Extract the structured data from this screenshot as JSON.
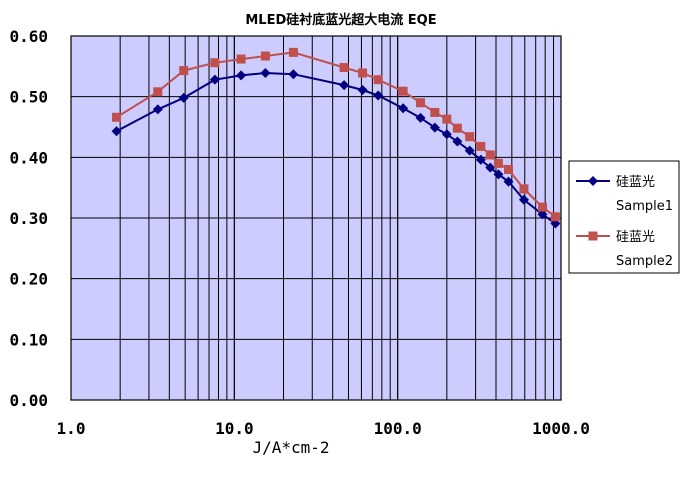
{
  "chart_data": {
    "type": "line",
    "title": "MLED硅衬底蓝光超大电流 EQE",
    "xlabel": "J/A*cm-2",
    "ylabel": "",
    "x_scale": "log",
    "xlim": [
      1,
      1000
    ],
    "ylim": [
      0,
      0.6
    ],
    "x_ticks": [
      1,
      10,
      100,
      1000
    ],
    "x_tick_labels": [
      "1.0",
      "10.0",
      "100.0",
      "1000.0"
    ],
    "y_ticks": [
      0,
      0.1,
      0.2,
      0.3,
      0.4,
      0.5,
      0.6
    ],
    "y_tick_labels": [
      "0.00",
      "0.10",
      "0.20",
      "0.30",
      "0.40",
      "0.50",
      "0.60"
    ],
    "grid": true,
    "plot_background": "#ccccff",
    "legend_position": "right",
    "series": [
      {
        "name": "硅蓝光 Sample1",
        "legend_lines": [
          "硅蓝光",
          "Sample1"
        ],
        "color": "#000080",
        "marker": "diamond",
        "x": [
          1.9,
          3.4,
          4.9,
          7.6,
          11,
          15.5,
          23,
          47,
          61,
          76,
          108,
          138,
          169,
          200,
          232,
          276,
          323,
          369,
          414,
          477,
          593,
          770,
          924
        ],
        "y": [
          0.443,
          0.479,
          0.498,
          0.528,
          0.535,
          0.539,
          0.537,
          0.519,
          0.511,
          0.502,
          0.481,
          0.465,
          0.449,
          0.438,
          0.426,
          0.411,
          0.396,
          0.383,
          0.372,
          0.36,
          0.33,
          0.306,
          0.291
        ]
      },
      {
        "name": "硅蓝光 Sample2",
        "legend_lines": [
          "硅蓝光",
          "Sample2"
        ],
        "color": "#c0504d",
        "marker": "square",
        "x": [
          1.9,
          3.4,
          4.9,
          7.6,
          11,
          15.5,
          23,
          47,
          61,
          76,
          108,
          138,
          169,
          200,
          232,
          276,
          323,
          369,
          414,
          477,
          593,
          770,
          924
        ],
        "y": [
          0.466,
          0.508,
          0.543,
          0.556,
          0.562,
          0.567,
          0.573,
          0.548,
          0.539,
          0.528,
          0.509,
          0.49,
          0.474,
          0.463,
          0.448,
          0.434,
          0.418,
          0.404,
          0.39,
          0.38,
          0.348,
          0.318,
          0.302
        ]
      }
    ]
  }
}
